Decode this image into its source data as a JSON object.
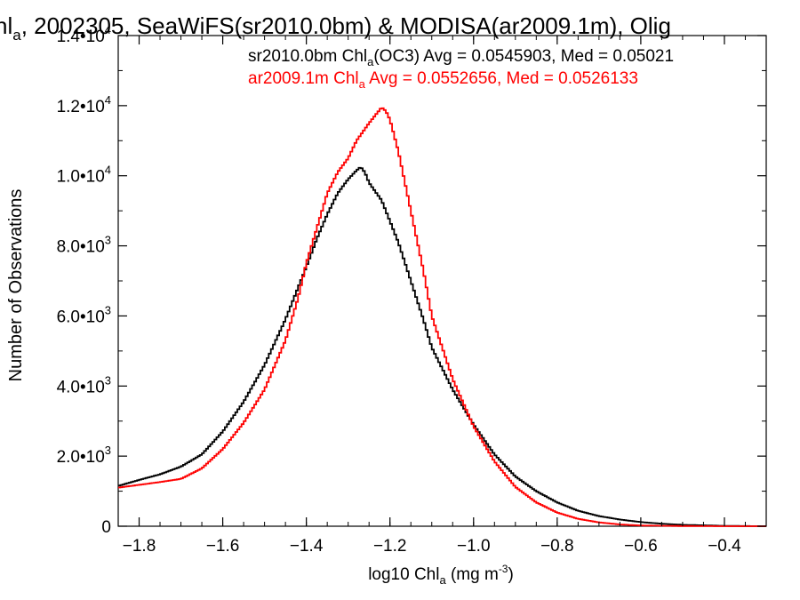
{
  "chart_data": {
    "type": "line",
    "title_parts": {
      "lead": "hl",
      "lead_sub": "a",
      "rest": ", 2002305, SeaWiFS(sr2010.0bm) & MODISA(ar2009.1m), Olig"
    },
    "xlabel_parts": {
      "pre": "log10 Chl",
      "sub": "a",
      "mid": " (mg m",
      "sup": "-3",
      "post": ")"
    },
    "ylabel": "Number of Observations",
    "xlim": [
      -1.85,
      -0.3
    ],
    "ylim": [
      0,
      14000
    ],
    "xticks": [
      {
        "value": -1.8,
        "label": "−1.8"
      },
      {
        "value": -1.6,
        "label": "−1.6"
      },
      {
        "value": -1.4,
        "label": "−1.4"
      },
      {
        "value": -1.2,
        "label": "−1.2"
      },
      {
        "value": -1.0,
        "label": "−1.0"
      },
      {
        "value": -0.8,
        "label": "−0.8"
      },
      {
        "value": -0.6,
        "label": "−0.6"
      },
      {
        "value": -0.4,
        "label": "−0.4"
      }
    ],
    "yticks": [
      {
        "value": 0,
        "mant": "0",
        "exp": ""
      },
      {
        "value": 2000,
        "mant": "2.0•10",
        "exp": "3"
      },
      {
        "value": 4000,
        "mant": "4.0•10",
        "exp": "3"
      },
      {
        "value": 6000,
        "mant": "6.0•10",
        "exp": "3"
      },
      {
        "value": 8000,
        "mant": "8.0•10",
        "exp": "3"
      },
      {
        "value": 10000,
        "mant": "1.0•10",
        "exp": "4"
      },
      {
        "value": 12000,
        "mant": "1.2•10",
        "exp": "4"
      },
      {
        "value": 14000,
        "mant": "1.4•10",
        "exp": "4"
      }
    ],
    "legend": [
      {
        "pre": "sr2010.0bm Chl",
        "sub": "a",
        "post": "(OC3) Avg = 0.0545903, Med = 0.05021",
        "color": "#000000"
      },
      {
        "pre": "ar2009.1m Chl",
        "sub": "a",
        "post": " Avg = 0.0552656, Med = 0.0526133",
        "color": "#ff0000"
      }
    ],
    "series": [
      {
        "color": "#000000",
        "x": [
          -1.85,
          -1.8,
          -1.75,
          -1.7,
          -1.65,
          -1.6,
          -1.55,
          -1.5,
          -1.45,
          -1.4,
          -1.375,
          -1.35,
          -1.325,
          -1.3,
          -1.28,
          -1.27,
          -1.26,
          -1.25,
          -1.22,
          -1.2,
          -1.18,
          -1.15,
          -1.12,
          -1.1,
          -1.05,
          -1.0,
          -0.95,
          -0.9,
          -0.85,
          -0.8,
          -0.75,
          -0.7,
          -0.65,
          -0.6,
          -0.55,
          -0.5,
          -0.4,
          -0.3
        ],
        "y": [
          1150,
          1320,
          1480,
          1700,
          2050,
          2700,
          3550,
          4600,
          5900,
          7400,
          8200,
          8900,
          9500,
          9900,
          10150,
          10250,
          10100,
          9800,
          9300,
          8700,
          8100,
          7000,
          5900,
          5100,
          3900,
          2900,
          2050,
          1420,
          1000,
          680,
          440,
          290,
          190,
          120,
          70,
          40,
          10,
          0
        ]
      },
      {
        "color": "#ff0000",
        "x": [
          -1.85,
          -1.8,
          -1.75,
          -1.7,
          -1.65,
          -1.6,
          -1.55,
          -1.5,
          -1.45,
          -1.42,
          -1.4,
          -1.375,
          -1.35,
          -1.325,
          -1.3,
          -1.28,
          -1.25,
          -1.23,
          -1.22,
          -1.21,
          -1.2,
          -1.18,
          -1.15,
          -1.12,
          -1.1,
          -1.05,
          -1.0,
          -0.95,
          -0.9,
          -0.85,
          -0.8,
          -0.75,
          -0.7,
          -0.65,
          -0.6,
          -0.5,
          -0.4,
          -0.3
        ],
        "y": [
          1100,
          1180,
          1260,
          1350,
          1650,
          2200,
          2950,
          3900,
          5300,
          6500,
          7500,
          8500,
          9500,
          10100,
          10500,
          11000,
          11500,
          11800,
          11950,
          11850,
          11600,
          10700,
          9000,
          7300,
          6000,
          4200,
          2850,
          1850,
          1120,
          680,
          390,
          210,
          110,
          50,
          20,
          5,
          0,
          0
        ]
      }
    ]
  }
}
